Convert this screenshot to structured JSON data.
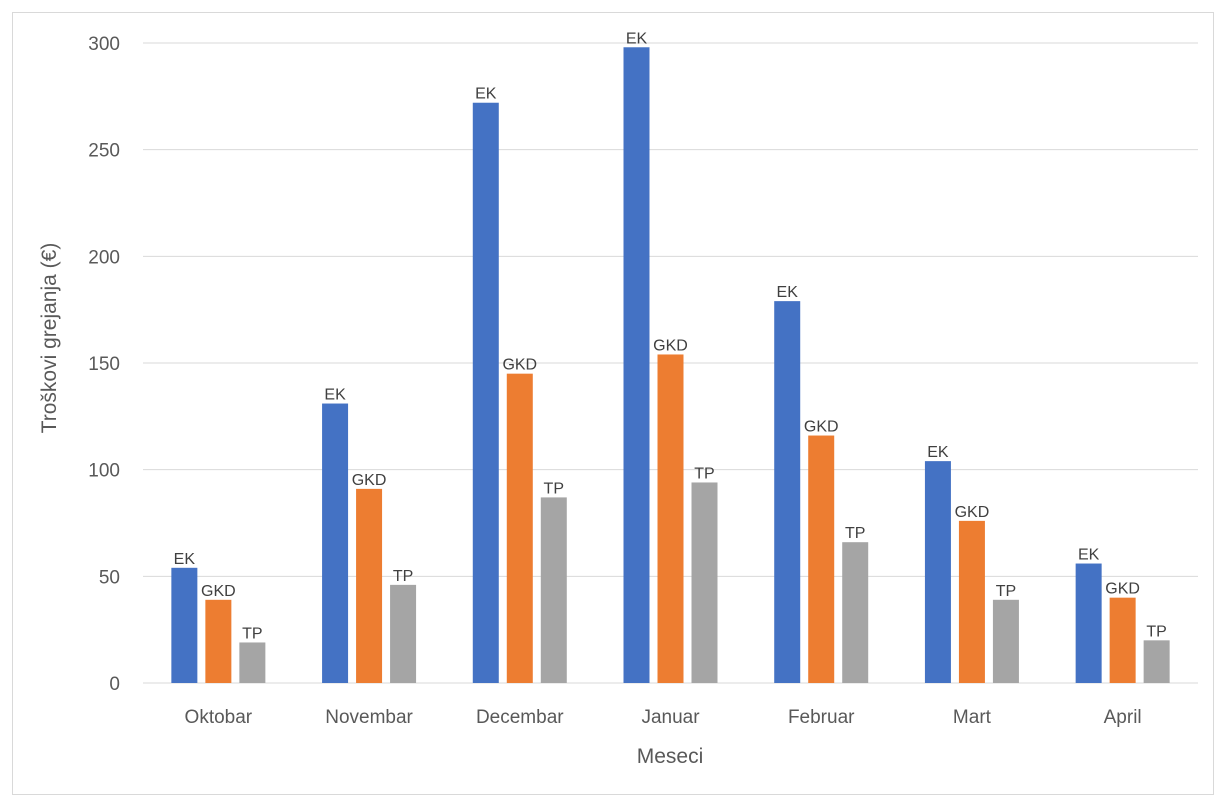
{
  "chart_data": {
    "type": "bar",
    "title": "",
    "xlabel": "Meseci",
    "ylabel": "Troškovi grejanja (€)",
    "ylim": [
      0,
      300
    ],
    "yticks": [
      0,
      50,
      100,
      150,
      200,
      250,
      300
    ],
    "grid": true,
    "legend": "none",
    "categories": [
      "Oktobar",
      "Novembar",
      "Decembar",
      "Januar",
      "Februar",
      "Mart",
      "April"
    ],
    "series": [
      {
        "name": "EK",
        "color": "#4472c4",
        "values": [
          54,
          131,
          272,
          298,
          179,
          104,
          56
        ]
      },
      {
        "name": "GKD",
        "color": "#ed7d31",
        "values": [
          39,
          91,
          145,
          154,
          116,
          76,
          40
        ]
      },
      {
        "name": "TP",
        "color": "#a5a5a5",
        "values": [
          19,
          46,
          87,
          94,
          66,
          39,
          20
        ]
      }
    ]
  }
}
